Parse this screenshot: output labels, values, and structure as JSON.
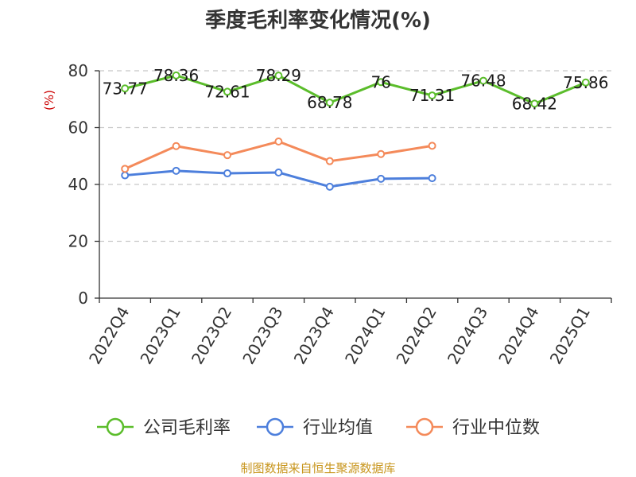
{
  "chart_data": {
    "type": "line",
    "title": "季度毛利率变化情况(%)",
    "ylabel": "(%)",
    "xlabel": "",
    "categories": [
      "2022Q4",
      "2023Q1",
      "2023Q2",
      "2023Q3",
      "2023Q4",
      "2024Q1",
      "2024Q2",
      "2024Q3",
      "2024Q4",
      "2025Q1"
    ],
    "ylim": [
      0,
      80
    ],
    "yticks": [
      0,
      20,
      40,
      60,
      80
    ],
    "grid": true,
    "legend_position": "bottom",
    "series": [
      {
        "name": "公司毛利率",
        "color": "#5bbd2b",
        "values": [
          73.77,
          78.36,
          72.61,
          78.29,
          68.78,
          76,
          71.31,
          76.48,
          68.42,
          75.86
        ],
        "labels": [
          "73.77",
          "78.36",
          "72.61",
          "78.29",
          "68.78",
          "76",
          "71.31",
          "76.48",
          "68.42",
          "75.86"
        ]
      },
      {
        "name": "行业均值",
        "color": "#4d7fdc",
        "values": [
          43.2,
          44.8,
          43.9,
          44.2,
          39.2,
          42,
          42.2,
          null,
          null,
          null
        ]
      },
      {
        "name": "行业中位数",
        "color": "#f48a5a",
        "values": [
          45.5,
          53.5,
          50.3,
          55.1,
          48.2,
          50.7,
          53.6,
          null,
          null,
          null
        ]
      }
    ]
  },
  "source": "制图数据来自恒生聚源数据库"
}
